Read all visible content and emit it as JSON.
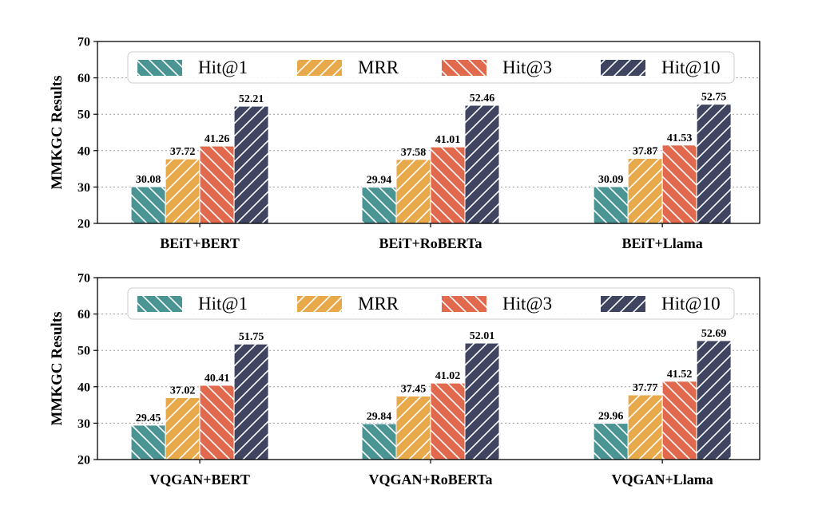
{
  "chart_data": [
    {
      "type": "bar",
      "ylabel": "MMKGC Results",
      "ylim": [
        20,
        70
      ],
      "yticks": [
        20,
        30,
        40,
        50,
        60,
        70
      ],
      "grid": "horizontal-dotted",
      "legend_placement": "top",
      "categories": [
        "BEiT+BERT",
        "BEiT+RoBERTa",
        "BEiT+Llama"
      ],
      "series": [
        {
          "name": "Hit@1",
          "color": "#4a9494",
          "values": [
            30.08,
            29.94,
            30.09
          ]
        },
        {
          "name": "MRR",
          "color": "#e8a94a",
          "values": [
            37.72,
            37.58,
            37.87
          ]
        },
        {
          "name": "Hit@3",
          "color": "#e0694e",
          "values": [
            41.26,
            41.01,
            41.53
          ]
        },
        {
          "name": "Hit@10",
          "color": "#3f4560",
          "values": [
            52.21,
            52.46,
            52.75
          ]
        }
      ]
    },
    {
      "type": "bar",
      "ylabel": "MMKGC Results",
      "ylim": [
        20,
        70
      ],
      "yticks": [
        20,
        30,
        40,
        50,
        60,
        70
      ],
      "grid": "horizontal-dotted",
      "legend_placement": "top",
      "categories": [
        "VQGAN+BERT",
        "VQGAN+RoBERTa",
        "VQGAN+Llama"
      ],
      "series": [
        {
          "name": "Hit@1",
          "color": "#4a9494",
          "values": [
            29.45,
            29.84,
            29.96
          ]
        },
        {
          "name": "MRR",
          "color": "#e8a94a",
          "values": [
            37.02,
            37.45,
            37.77
          ]
        },
        {
          "name": "Hit@3",
          "color": "#e0694e",
          "values": [
            40.41,
            41.02,
            41.52
          ]
        },
        {
          "name": "Hit@10",
          "color": "#3f4560",
          "values": [
            51.75,
            52.01,
            52.69
          ]
        }
      ]
    }
  ]
}
